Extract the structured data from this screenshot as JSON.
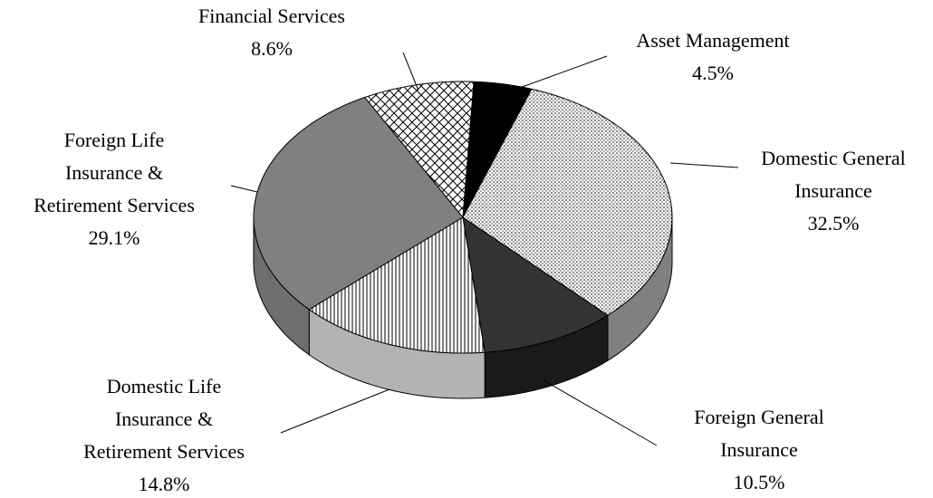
{
  "chart_data": {
    "type": "pie3d",
    "categories": [
      "Asset Management",
      "Domestic General\nInsurance",
      "Foreign General\nInsurance",
      "Domestic Life\nInsurance &\nRetirement Services",
      "Foreign Life\nInsurance &\nRetirement Services",
      "Financial Services"
    ],
    "values": [
      4.5,
      32.5,
      10.5,
      14.8,
      29.1,
      8.6
    ],
    "value_labels": [
      "4.5%",
      "32.5%",
      "10.5%",
      "14.8%",
      "29.1%",
      "8.6%"
    ],
    "colors": [
      "#000000",
      "#ffffff",
      "#333333",
      "#ffffff",
      "#808080",
      "#ffffff"
    ],
    "patterns": [
      "solid",
      "dots",
      "solid",
      "vertical-lines",
      "solid",
      "crosshatch"
    ],
    "side_colors": [
      "#000000",
      "#808080",
      "#1a1a1a",
      "#b3b3b3",
      "#6e6e6e",
      "#cccccc"
    ]
  }
}
